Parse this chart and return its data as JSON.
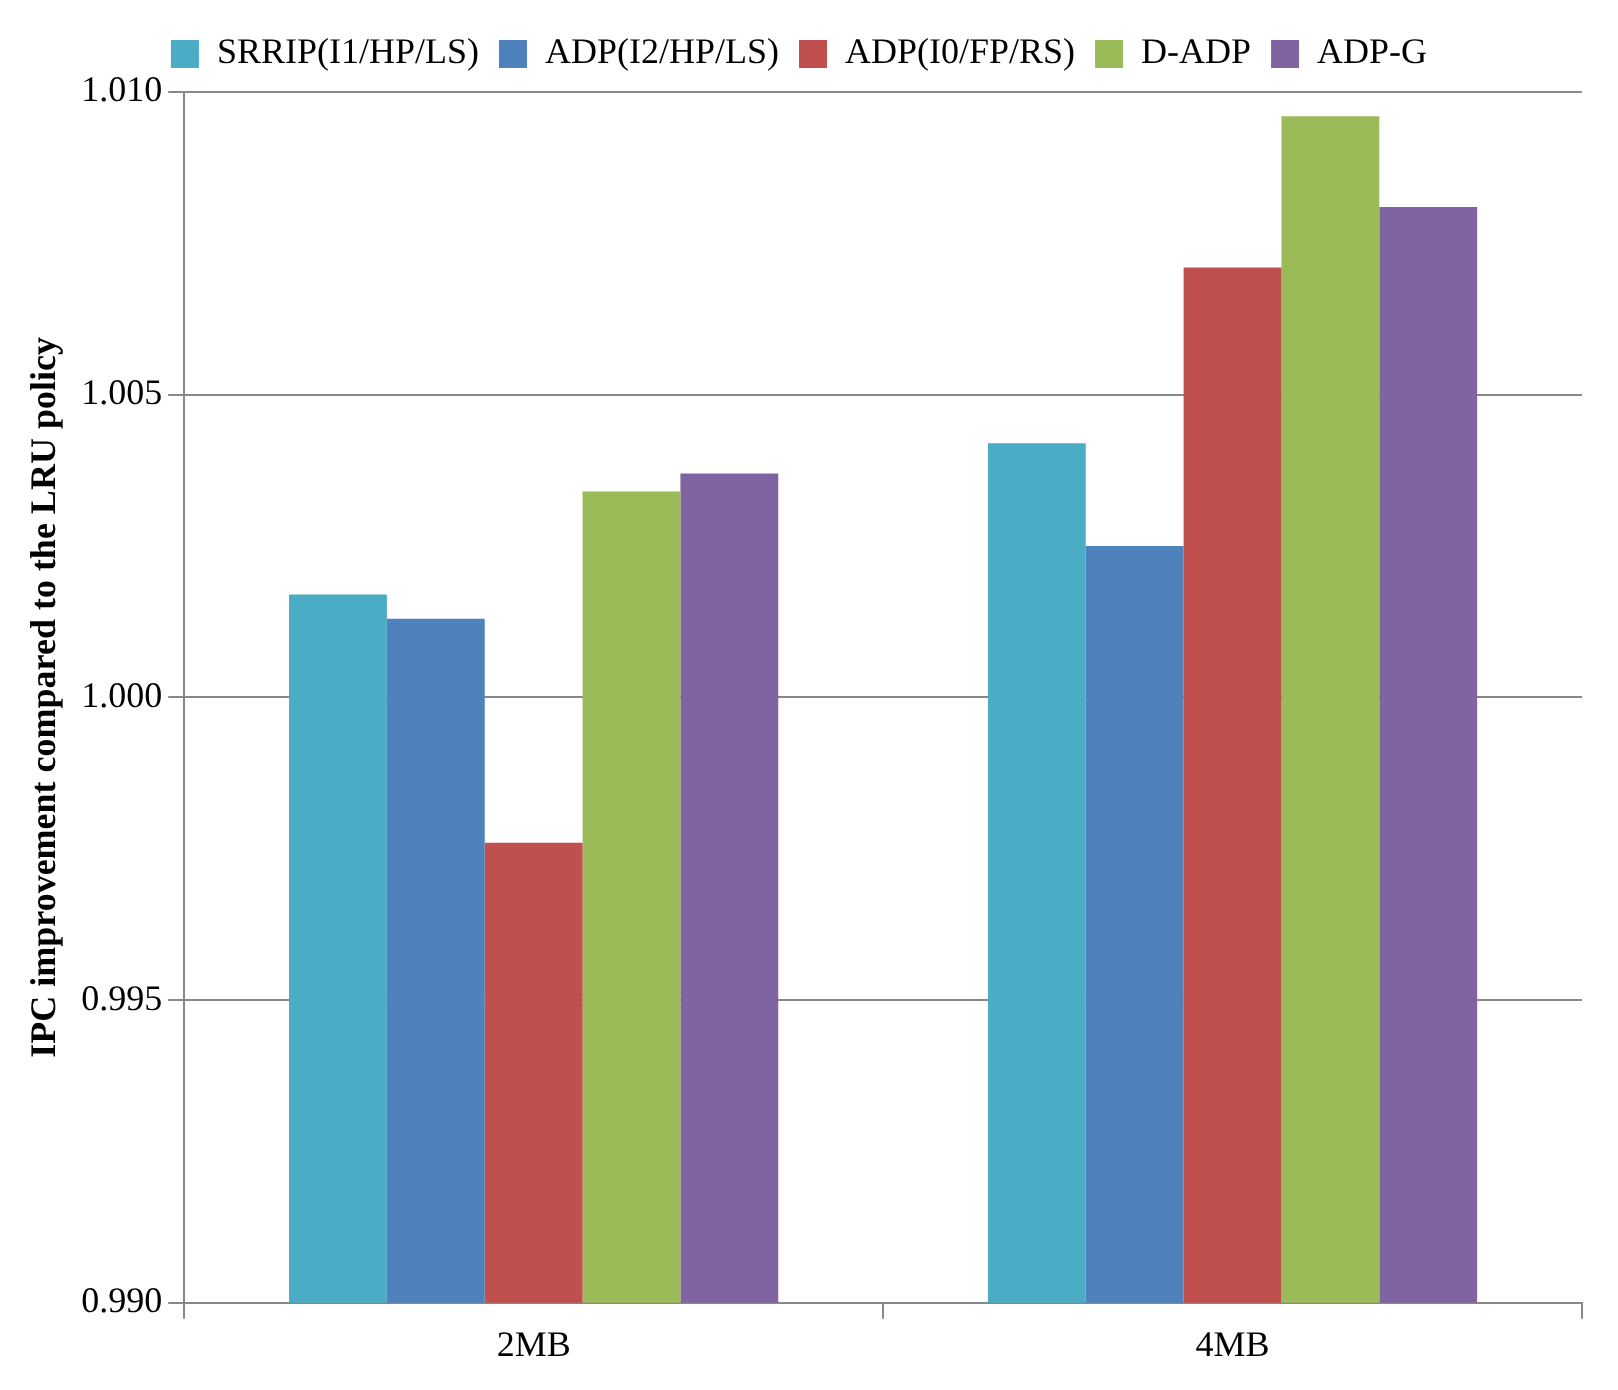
{
  "chart_data": {
    "type": "bar",
    "ylabel": "IPC improvement compared to the LRU policy",
    "categories": [
      "2MB",
      "4MB"
    ],
    "series": [
      {
        "name": "SRRIP(I1/HP/LS)",
        "color": "#4bacc6",
        "values": [
          1.0017,
          1.0042
        ]
      },
      {
        "name": "ADP(I2/HP/LS)",
        "color": "#4f81bd",
        "values": [
          1.0013,
          1.0025
        ]
      },
      {
        "name": "ADP(I0/FP/RS)",
        "color": "#c0504d",
        "values": [
          0.9976,
          1.0071
        ]
      },
      {
        "name": "D-ADP",
        "color": "#9bbb59",
        "values": [
          1.0034,
          1.0096
        ]
      },
      {
        "name": "ADP-G",
        "color": "#8064a2",
        "values": [
          1.0037,
          1.0081
        ]
      }
    ],
    "ylim": [
      0.99,
      1.01
    ],
    "yticks": [
      {
        "value": 0.99,
        "label": "0.990"
      },
      {
        "value": 0.995,
        "label": "0.995"
      },
      {
        "value": 1.0,
        "label": "1.000"
      },
      {
        "value": 1.005,
        "label": "1.005"
      },
      {
        "value": 1.01,
        "label": "1.010"
      }
    ],
    "grid": "y",
    "legend": "top"
  }
}
